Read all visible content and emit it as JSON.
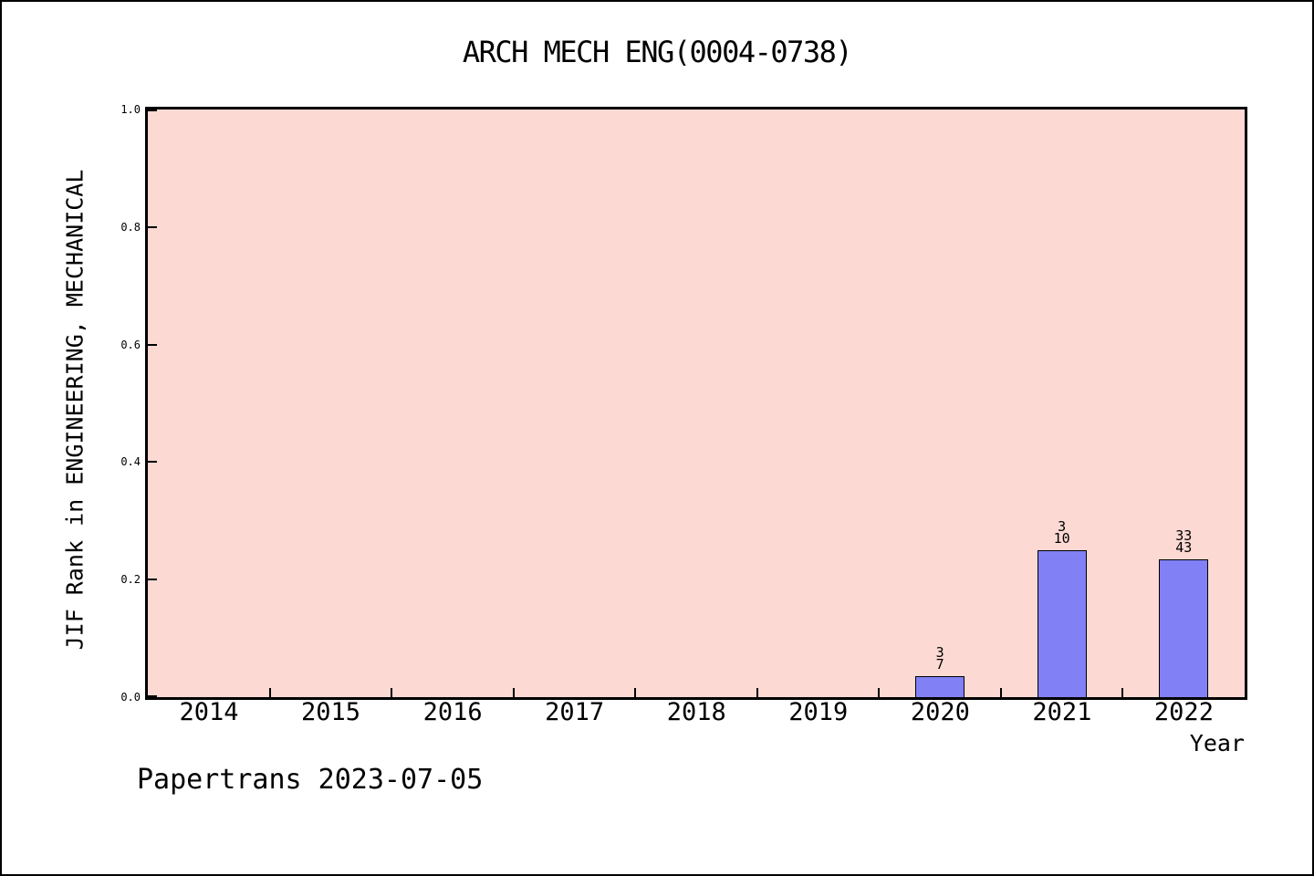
{
  "title": "ARCH MECH ENG(0004-0738)",
  "footer": {
    "text": "Papertrans 2023-07-05"
  },
  "chart_data": {
    "type": "bar",
    "title": "ARCH MECH ENG(0004-0738)",
    "xlabel": "Year",
    "ylabel": "JIF Rank in ENGINEERING, MECHANICAL",
    "categories": [
      "2014",
      "2015",
      "2016",
      "2017",
      "2018",
      "2019",
      "2020",
      "2021",
      "2022"
    ],
    "series": [
      {
        "name": "JIF Rank",
        "values": [
          null,
          null,
          null,
          null,
          null,
          null,
          0.036,
          0.25,
          0.234
        ]
      }
    ],
    "bar_annotations": [
      null,
      null,
      null,
      null,
      null,
      null,
      [
        "3",
        "7"
      ],
      [
        "3",
        "10"
      ],
      [
        "33",
        "43"
      ]
    ],
    "ylim": [
      0,
      1
    ],
    "yticks": [
      "0.0",
      "0.2",
      "0.4",
      "0.6",
      "0.8",
      "1.0"
    ],
    "grid": false,
    "legend_position": "none",
    "colors": {
      "plot_background": "#fcd9d3",
      "bar_fill": "#8180f5",
      "bar_border": "#000000",
      "axis": "#000000",
      "text": "#000000",
      "canvas_background": "#ffffff"
    }
  }
}
